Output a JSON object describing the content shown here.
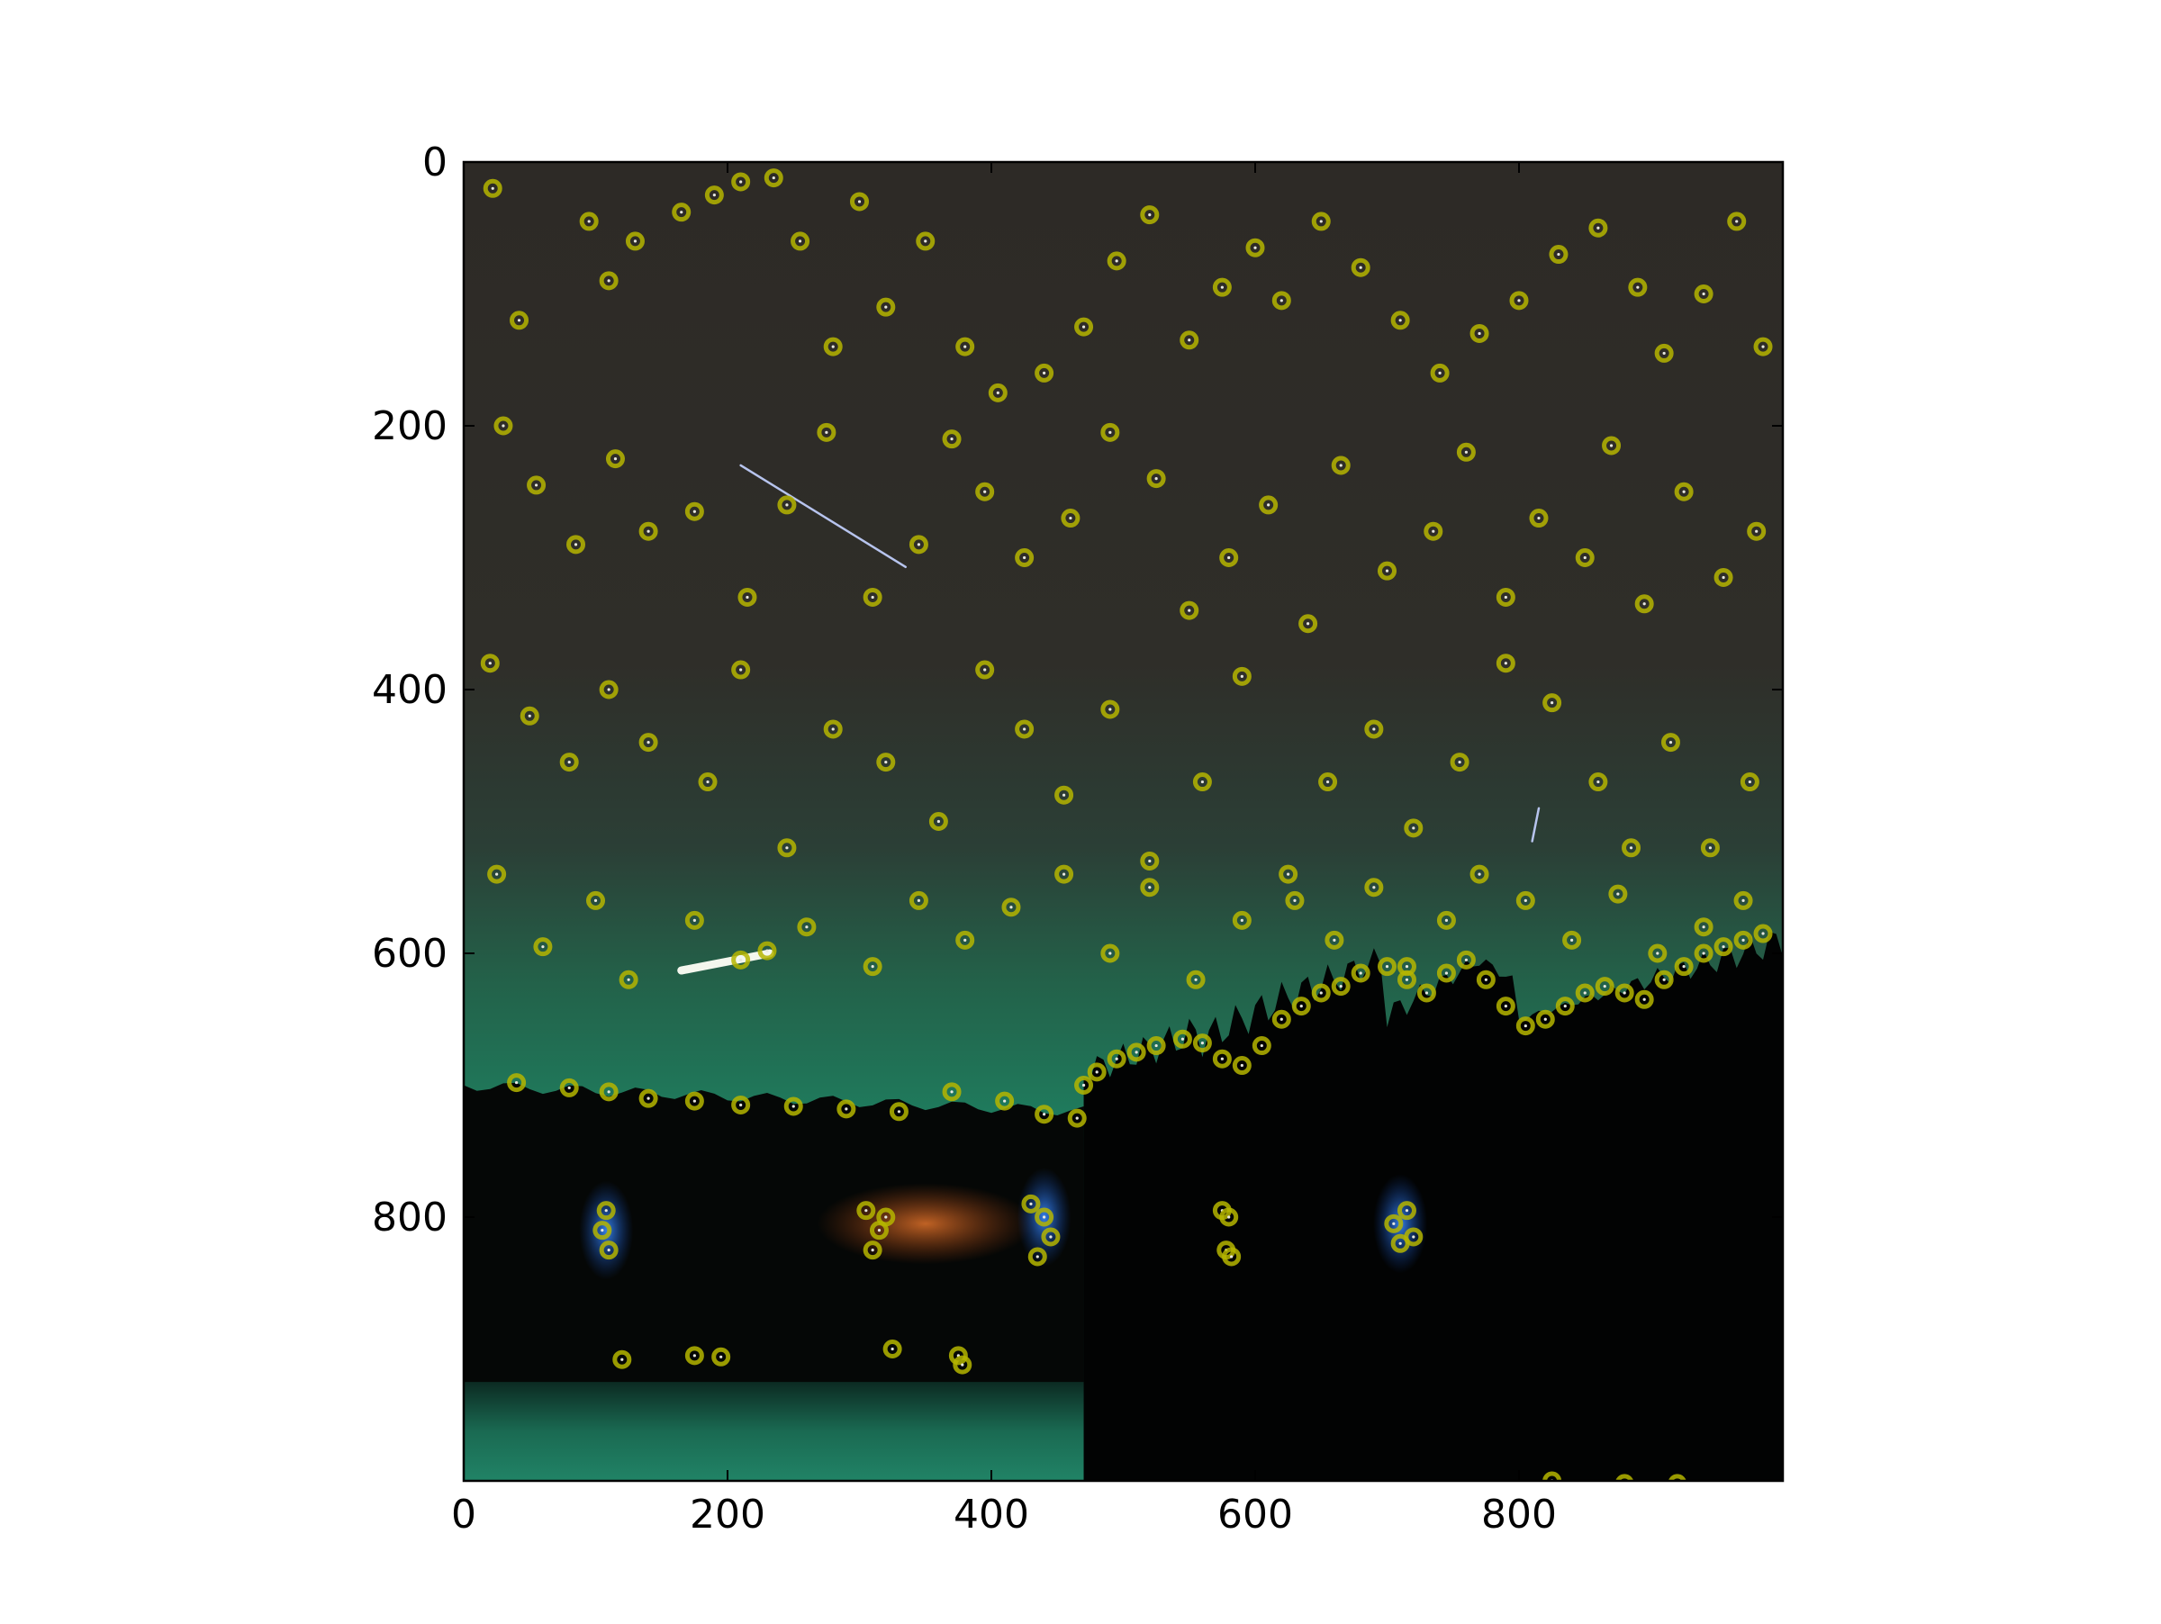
{
  "chart_data": {
    "type": "scatter",
    "title": "",
    "xlabel": "",
    "ylabel": "",
    "xlim": [
      0,
      1000
    ],
    "ylim": [
      1000,
      0
    ],
    "y_inverted": true,
    "grid": false,
    "legend": "none",
    "x_ticks": [
      "0",
      "200",
      "400",
      "600",
      "800"
    ],
    "x_tick_values": [
      0,
      200,
      400,
      600,
      800
    ],
    "y_ticks": [
      "0",
      "200",
      "400",
      "600",
      "800"
    ],
    "y_tick_values": [
      0,
      200,
      400,
      600,
      800
    ],
    "background_image": "night-sky-over-lake-with-green-aurora-and-forest-silhouette",
    "marker": {
      "shape": "circle",
      "fill": "none",
      "color": "#b5b500"
    },
    "series": [
      {
        "points": [
          [
            22,
            20
          ],
          [
            42,
            120
          ],
          [
            95,
            45
          ],
          [
            110,
            90
          ],
          [
            130,
            60
          ],
          [
            165,
            38
          ],
          [
            190,
            25
          ],
          [
            210,
            15
          ],
          [
            235,
            12
          ],
          [
            255,
            60
          ],
          [
            280,
            140
          ],
          [
            300,
            30
          ],
          [
            320,
            110
          ],
          [
            350,
            60
          ],
          [
            380,
            140
          ],
          [
            405,
            175
          ],
          [
            440,
            160
          ],
          [
            470,
            125
          ],
          [
            495,
            75
          ],
          [
            520,
            40
          ],
          [
            550,
            135
          ],
          [
            575,
            95
          ],
          [
            600,
            65
          ],
          [
            620,
            105
          ],
          [
            650,
            45
          ],
          [
            680,
            80
          ],
          [
            710,
            120
          ],
          [
            740,
            160
          ],
          [
            770,
            130
          ],
          [
            800,
            105
          ],
          [
            830,
            70
          ],
          [
            860,
            50
          ],
          [
            890,
            95
          ],
          [
            910,
            145
          ],
          [
            940,
            100
          ],
          [
            965,
            45
          ],
          [
            985,
            140
          ],
          [
            30,
            200
          ],
          [
            55,
            245
          ],
          [
            85,
            290
          ],
          [
            115,
            225
          ],
          [
            140,
            280
          ],
          [
            175,
            265
          ],
          [
            215,
            330
          ],
          [
            245,
            260
          ],
          [
            275,
            205
          ],
          [
            310,
            330
          ],
          [
            345,
            290
          ],
          [
            370,
            210
          ],
          [
            395,
            250
          ],
          [
            425,
            300
          ],
          [
            460,
            270
          ],
          [
            490,
            205
          ],
          [
            525,
            240
          ],
          [
            550,
            340
          ],
          [
            580,
            300
          ],
          [
            610,
            260
          ],
          [
            640,
            350
          ],
          [
            665,
            230
          ],
          [
            700,
            310
          ],
          [
            735,
            280
          ],
          [
            760,
            220
          ],
          [
            790,
            330
          ],
          [
            815,
            270
          ],
          [
            850,
            300
          ],
          [
            870,
            215
          ],
          [
            895,
            335
          ],
          [
            925,
            250
          ],
          [
            955,
            315
          ],
          [
            980,
            280
          ],
          [
            20,
            380
          ],
          [
            50,
            420
          ],
          [
            80,
            455
          ],
          [
            110,
            400
          ],
          [
            140,
            440
          ],
          [
            185,
            470
          ],
          [
            210,
            385
          ],
          [
            245,
            520
          ],
          [
            280,
            430
          ],
          [
            320,
            455
          ],
          [
            360,
            500
          ],
          [
            395,
            385
          ],
          [
            425,
            430
          ],
          [
            455,
            480
          ],
          [
            490,
            415
          ],
          [
            520,
            530
          ],
          [
            560,
            470
          ],
          [
            590,
            390
          ],
          [
            625,
            540
          ],
          [
            655,
            470
          ],
          [
            690,
            430
          ],
          [
            720,
            505
          ],
          [
            755,
            455
          ],
          [
            790,
            380
          ],
          [
            825,
            410
          ],
          [
            860,
            470
          ],
          [
            885,
            520
          ],
          [
            915,
            440
          ],
          [
            945,
            520
          ],
          [
            975,
            470
          ],
          [
            25,
            540
          ],
          [
            60,
            595
          ],
          [
            100,
            560
          ],
          [
            125,
            620
          ],
          [
            175,
            575
          ],
          [
            210,
            605
          ],
          [
            230,
            598
          ],
          [
            260,
            580
          ],
          [
            310,
            610
          ],
          [
            345,
            560
          ],
          [
            380,
            590
          ],
          [
            415,
            565
          ],
          [
            455,
            540
          ],
          [
            490,
            600
          ],
          [
            520,
            550
          ],
          [
            555,
            620
          ],
          [
            590,
            575
          ],
          [
            630,
            560
          ],
          [
            660,
            590
          ],
          [
            690,
            550
          ],
          [
            715,
            610
          ],
          [
            745,
            575
          ],
          [
            770,
            540
          ],
          [
            805,
            560
          ],
          [
            840,
            590
          ],
          [
            875,
            555
          ],
          [
            905,
            600
          ],
          [
            940,
            580
          ],
          [
            970,
            560
          ],
          [
            40,
            698
          ],
          [
            80,
            702
          ],
          [
            110,
            705
          ],
          [
            140,
            710
          ],
          [
            175,
            712
          ],
          [
            210,
            715
          ],
          [
            250,
            716
          ],
          [
            290,
            718
          ],
          [
            330,
            720
          ],
          [
            370,
            705
          ],
          [
            410,
            712
          ],
          [
            440,
            722
          ],
          [
            465,
            725
          ],
          [
            470,
            700
          ],
          [
            480,
            690
          ],
          [
            495,
            680
          ],
          [
            510,
            675
          ],
          [
            525,
            670
          ],
          [
            545,
            665
          ],
          [
            560,
            668
          ],
          [
            575,
            680
          ],
          [
            590,
            685
          ],
          [
            605,
            670
          ],
          [
            620,
            650
          ],
          [
            635,
            640
          ],
          [
            650,
            630
          ],
          [
            665,
            625
          ],
          [
            680,
            615
          ],
          [
            700,
            610
          ],
          [
            715,
            620
          ],
          [
            730,
            630
          ],
          [
            745,
            615
          ],
          [
            760,
            605
          ],
          [
            775,
            620
          ],
          [
            790,
            640
          ],
          [
            805,
            655
          ],
          [
            820,
            650
          ],
          [
            835,
            640
          ],
          [
            850,
            630
          ],
          [
            865,
            625
          ],
          [
            880,
            630
          ],
          [
            895,
            635
          ],
          [
            910,
            620
          ],
          [
            925,
            610
          ],
          [
            940,
            600
          ],
          [
            955,
            595
          ],
          [
            970,
            590
          ],
          [
            985,
            585
          ],
          [
            105,
            810
          ],
          [
            110,
            825
          ],
          [
            108,
            795
          ],
          [
            305,
            795
          ],
          [
            315,
            810
          ],
          [
            310,
            825
          ],
          [
            320,
            800
          ],
          [
            430,
            790
          ],
          [
            440,
            800
          ],
          [
            445,
            815
          ],
          [
            435,
            830
          ],
          [
            575,
            795
          ],
          [
            580,
            800
          ],
          [
            578,
            825
          ],
          [
            582,
            830
          ],
          [
            705,
            805
          ],
          [
            710,
            820
          ],
          [
            715,
            795
          ],
          [
            720,
            815
          ],
          [
            120,
            908
          ],
          [
            175,
            905
          ],
          [
            195,
            906
          ],
          [
            325,
            900
          ],
          [
            375,
            905
          ],
          [
            378,
            912
          ],
          [
            825,
            1000
          ],
          [
            880,
            1002
          ],
          [
            920,
            1002
          ]
        ]
      }
    ],
    "streaks": [
      {
        "from": [
          210,
          230
        ],
        "to": [
          335,
          307
        ]
      },
      {
        "from": [
          165,
          613
        ],
        "to": [
          232,
          600
        ]
      },
      {
        "from": [
          815,
          490
        ],
        "to": [
          810,
          515
        ]
      }
    ]
  }
}
